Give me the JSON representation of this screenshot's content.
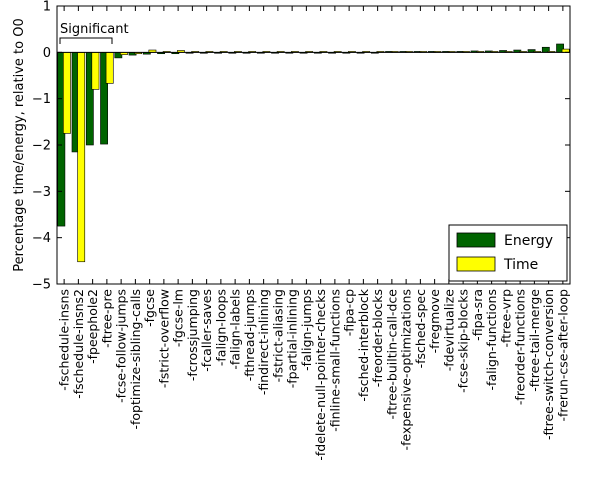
{
  "chart_data": {
    "type": "bar",
    "ylabel": "Percentage time/energy, relative to O0",
    "xlabel": "",
    "title": "",
    "ylim": [
      -5,
      1
    ],
    "yticks": [
      -5,
      -4,
      -3,
      -2,
      -1,
      0,
      1
    ],
    "ytick_labels": [
      "−5",
      "−4",
      "−3",
      "−2",
      "−1",
      "0",
      "1"
    ],
    "grid": false,
    "legend_position": "lower-right",
    "annotation": "Significant",
    "annotation_span": [
      0,
      4
    ],
    "categories": [
      "-fschedule-insns",
      "-fschedule-insns2",
      "-fpeephole2",
      "-ftree-pre",
      "-fcse-follow-jumps",
      "-foptimize-sibling-calls",
      "-fgcse",
      "-fstrict-overflow",
      "-fgcse-lm",
      "-fcrossjumping",
      "-fcaller-saves",
      "-falign-loops",
      "-falign-labels",
      "-fthread-jumps",
      "-findirect-inlining",
      "-fstrict-aliasing",
      "-fpartial-inlining",
      "-falign-jumps",
      "-fdelete-null-pointer-checks",
      "-finline-small-functions",
      "-fipa-cp",
      "-fsched-interblock",
      "-freorder-blocks",
      "-ftree-builtin-call-dce",
      "-fexpensive-optimizations",
      "-fsched-spec",
      "-fregmove",
      "-fdevirtualize",
      "-fcse-skip-blocks",
      "-fipa-sra",
      "-falign-functions",
      "-ftree-vrp",
      "-freorder-functions",
      "-ftree-tail-merge",
      "-ftree-switch-conversion",
      "-frerun-cse-after-loop"
    ],
    "series": [
      {
        "name": "Energy",
        "color": "#006400",
        "values": [
          -3.75,
          -2.15,
          -2.0,
          -1.98,
          -0.12,
          -0.06,
          -0.04,
          -0.03,
          -0.03,
          -0.02,
          -0.02,
          -0.02,
          -0.02,
          -0.02,
          -0.01,
          -0.01,
          -0.01,
          -0.01,
          -0.01,
          -0.01,
          -0.01,
          -0.01,
          -0.01,
          0.01,
          0.01,
          0.01,
          0.02,
          0.02,
          0.02,
          0.03,
          0.03,
          0.04,
          0.05,
          0.06,
          0.11,
          0.18
        ]
      },
      {
        "name": "Time",
        "color": "#ffff00",
        "values": [
          -1.75,
          -4.52,
          -0.8,
          -0.67,
          -0.05,
          -0.03,
          0.05,
          0.01,
          0.04,
          0.01,
          0.01,
          0.01,
          0.01,
          0.0,
          0.01,
          0.0,
          0.0,
          0.0,
          0.0,
          0.0,
          0.0,
          0.0,
          0.0,
          0.0,
          0.0,
          0.0,
          0.0,
          0.0,
          0.0,
          0.0,
          0.0,
          0.0,
          0.0,
          0.0,
          0.02,
          0.07
        ]
      }
    ]
  }
}
